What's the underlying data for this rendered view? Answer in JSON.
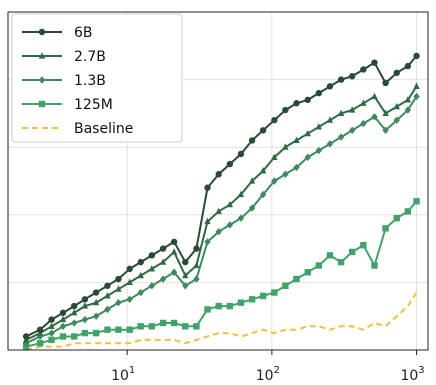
{
  "chart_data": {
    "type": "line",
    "xscale": "log",
    "xlim": [
      1.5,
      1200
    ],
    "ylim": [
      0,
      1
    ],
    "grid": true,
    "legend_position": "top-left",
    "x_tick_labels": [
      {
        "value": 10,
        "base": "10",
        "exp": "1"
      },
      {
        "value": 100,
        "base": "10",
        "exp": "2"
      },
      {
        "value": 1000,
        "base": "10",
        "exp": "3"
      }
    ],
    "x": [
      2,
      2.5,
      3,
      3.6,
      4.3,
      5.1,
      6.1,
      7.3,
      8.7,
      10.4,
      12.4,
      14.8,
      17.7,
      21.1,
      25.2,
      30.1,
      35.9,
      42.9,
      51.2,
      61.1,
      73,
      87,
      104,
      124,
      148,
      177,
      211,
      252,
      301,
      359,
      429,
      512,
      611,
      730,
      871,
      1000
    ],
    "series": [
      {
        "name": "6B",
        "color": "#2b4a36",
        "marker": "circle",
        "line_style": "solid",
        "values": [
          0.04,
          0.06,
          0.09,
          0.11,
          0.13,
          0.15,
          0.17,
          0.19,
          0.21,
          0.24,
          0.26,
          0.28,
          0.3,
          0.32,
          0.26,
          0.3,
          0.48,
          0.52,
          0.55,
          0.58,
          0.62,
          0.65,
          0.68,
          0.71,
          0.73,
          0.74,
          0.76,
          0.78,
          0.8,
          0.81,
          0.83,
          0.85,
          0.79,
          0.82,
          0.84,
          0.87
        ]
      },
      {
        "name": "2.7B",
        "color": "#2f6a45",
        "marker": "triangle",
        "line_style": "solid",
        "values": [
          0.03,
          0.05,
          0.07,
          0.09,
          0.11,
          0.13,
          0.14,
          0.16,
          0.18,
          0.2,
          0.22,
          0.24,
          0.26,
          0.29,
          0.22,
          0.25,
          0.38,
          0.41,
          0.43,
          0.46,
          0.5,
          0.53,
          0.57,
          0.6,
          0.62,
          0.64,
          0.66,
          0.68,
          0.7,
          0.71,
          0.73,
          0.75,
          0.7,
          0.72,
          0.74,
          0.78
        ]
      },
      {
        "name": "1.3B",
        "color": "#3f8a5c",
        "marker": "diamond",
        "line_style": "solid",
        "values": [
          0.02,
          0.04,
          0.05,
          0.07,
          0.08,
          0.09,
          0.1,
          0.12,
          0.14,
          0.15,
          0.17,
          0.19,
          0.21,
          0.23,
          0.19,
          0.21,
          0.32,
          0.35,
          0.37,
          0.39,
          0.42,
          0.46,
          0.5,
          0.52,
          0.54,
          0.57,
          0.59,
          0.61,
          0.63,
          0.65,
          0.67,
          0.69,
          0.65,
          0.68,
          0.71,
          0.75
        ]
      },
      {
        "name": "125M",
        "color": "#3fa36a",
        "marker": "square",
        "line_style": "solid",
        "values": [
          0.01,
          0.02,
          0.03,
          0.04,
          0.04,
          0.05,
          0.05,
          0.06,
          0.06,
          0.06,
          0.07,
          0.07,
          0.08,
          0.08,
          0.07,
          0.07,
          0.12,
          0.13,
          0.13,
          0.14,
          0.15,
          0.16,
          0.17,
          0.19,
          0.21,
          0.23,
          0.25,
          0.28,
          0.26,
          0.29,
          0.31,
          0.25,
          0.36,
          0.39,
          0.41,
          0.44
        ]
      },
      {
        "name": "Baseline",
        "color": "#f0c040",
        "marker": "none",
        "line_style": "dashed",
        "values": [
          0.0,
          0.01,
          0.01,
          0.01,
          0.02,
          0.02,
          0.02,
          0.02,
          0.02,
          0.02,
          0.03,
          0.03,
          0.03,
          0.03,
          0.02,
          0.03,
          0.04,
          0.05,
          0.05,
          0.04,
          0.05,
          0.06,
          0.05,
          0.06,
          0.06,
          0.07,
          0.07,
          0.06,
          0.07,
          0.07,
          0.06,
          0.08,
          0.07,
          0.1,
          0.13,
          0.17
        ]
      }
    ]
  }
}
